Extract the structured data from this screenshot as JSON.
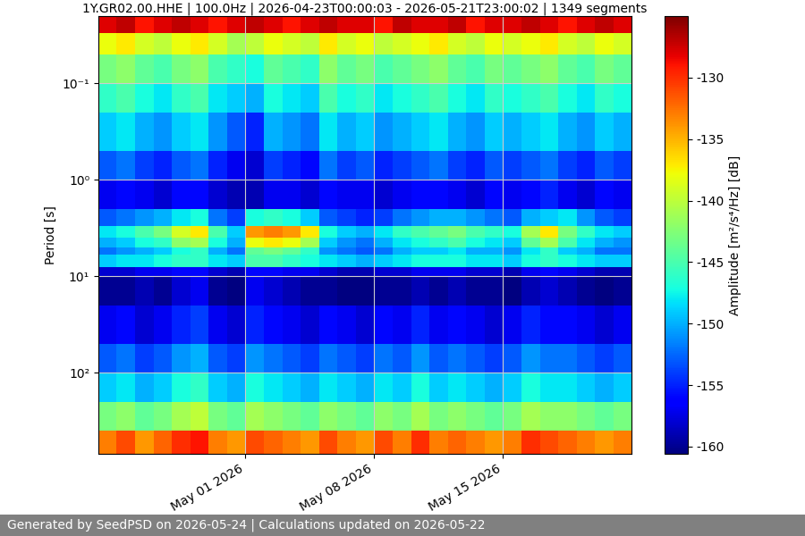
{
  "chart_data": {
    "type": "heatmap",
    "title": "1Y.GR02.00.HHE | 100.0Hz | 2026-04-23T00:00:03 - 2026-05-21T23:00:02 | 1349 segments",
    "y_label": "Period [s]",
    "colorbar_label": "Amplitude [m²/s⁴/Hz] [dB]",
    "footer": "Generated by SeedPSD on 2026-05-24 | Calculations updated on 2026-05-22",
    "color": "jet",
    "log": "y",
    "grid": true,
    "x": [
      "2026-04-23",
      "2026-04-24",
      "2026-04-25",
      "2026-04-26",
      "2026-04-27",
      "2026-04-28",
      "2026-04-29",
      "2026-04-30",
      "2026-05-01",
      "2026-05-02",
      "2026-05-03",
      "2026-05-04",
      "2026-05-05",
      "2026-05-06",
      "2026-05-07",
      "2026-05-08",
      "2026-05-09",
      "2026-05-10",
      "2026-05-11",
      "2026-05-12",
      "2026-05-13",
      "2026-05-14",
      "2026-05-15",
      "2026-05-16",
      "2026-05-17",
      "2026-05-18",
      "2026-05-19",
      "2026-05-20",
      "2026-05-21",
      "2026-05-22"
    ],
    "y": [
      0.02,
      0.03,
      0.05,
      0.1,
      0.2,
      0.5,
      1,
      2,
      3,
      4,
      5,
      6,
      8,
      10,
      20,
      50,
      100,
      200,
      400,
      700
    ],
    "cells": [
      [
        -128,
        -127,
        -129,
        -128,
        -127,
        -128,
        -129,
        -128,
        -127,
        -128,
        -129,
        -128,
        -127,
        -128,
        -128,
        -129,
        -127,
        -128,
        -128,
        -127,
        -129,
        -128,
        -128,
        -127,
        -128,
        -129,
        -128,
        -127,
        -128
      ],
      [
        -138,
        -137,
        -139,
        -140,
        -138,
        -137,
        -139,
        -141,
        -140,
        -138,
        -139,
        -140,
        -137,
        -139,
        -138,
        -140,
        -139,
        -138,
        -137,
        -139,
        -140,
        -138,
        -139,
        -138,
        -137,
        -139,
        -140,
        -138,
        -139
      ],
      [
        -143,
        -142,
        -144,
        -145,
        -143,
        -142,
        -145,
        -146,
        -147,
        -144,
        -145,
        -146,
        -142,
        -144,
        -143,
        -145,
        -144,
        -143,
        -142,
        -144,
        -145,
        -143,
        -144,
        -143,
        -142,
        -144,
        -145,
        -143,
        -144
      ],
      [
        -146,
        -145,
        -147,
        -148,
        -146,
        -145,
        -148,
        -149,
        -150,
        -147,
        -148,
        -149,
        -145,
        -147,
        -146,
        -148,
        -147,
        -146,
        -145,
        -147,
        -148,
        -146,
        -147,
        -146,
        -145,
        -147,
        -148,
        -146,
        -147
      ],
      [
        -149,
        -148,
        -150,
        -151,
        -149,
        -148,
        -151,
        -153,
        -155,
        -150,
        -151,
        -152,
        -148,
        -150,
        -149,
        -151,
        -150,
        -149,
        -148,
        -150,
        -151,
        -149,
        -150,
        -149,
        -148,
        -150,
        -151,
        -149,
        -150
      ],
      [
        -153,
        -152,
        -154,
        -155,
        -153,
        -152,
        -155,
        -157,
        -158,
        -154,
        -155,
        -156,
        -152,
        -154,
        -153,
        -155,
        -154,
        -153,
        -152,
        -154,
        -155,
        -153,
        -154,
        -153,
        -152,
        -154,
        -155,
        -153,
        -154
      ],
      [
        -157,
        -156,
        -157,
        -158,
        -156,
        -156,
        -158,
        -159,
        -159,
        -157,
        -157,
        -158,
        -156,
        -157,
        -157,
        -158,
        -157,
        -156,
        -156,
        -157,
        -158,
        -156,
        -157,
        -156,
        -155,
        -157,
        -158,
        -156,
        -157
      ],
      [
        -153,
        -152,
        -151,
        -150,
        -148,
        -147,
        -152,
        -154,
        -147,
        -146,
        -147,
        -149,
        -153,
        -154,
        -155,
        -154,
        -152,
        -151,
        -150,
        -150,
        -151,
        -152,
        -153,
        -150,
        -149,
        -148,
        -151,
        -153,
        -154
      ],
      [
        -148,
        -147,
        -145,
        -143,
        -139,
        -137,
        -145,
        -149,
        -134,
        -133,
        -134,
        -137,
        -147,
        -149,
        -150,
        -148,
        -146,
        -145,
        -144,
        -143,
        -145,
        -146,
        -147,
        -141,
        -137,
        -143,
        -146,
        -148,
        -149
      ],
      [
        -150,
        -149,
        -147,
        -146,
        -142,
        -141,
        -147,
        -150,
        -138,
        -137,
        -138,
        -141,
        -149,
        -151,
        -152,
        -150,
        -148,
        -147,
        -146,
        -145,
        -147,
        -148,
        -149,
        -144,
        -141,
        -145,
        -148,
        -150,
        -151
      ],
      [
        -152,
        -151,
        -150,
        -149,
        -147,
        -146,
        -150,
        -152,
        -144,
        -143,
        -144,
        -146,
        -151,
        -152,
        -153,
        -152,
        -150,
        -149,
        -149,
        -148,
        -150,
        -150,
        -151,
        -148,
        -146,
        -149,
        -150,
        -152,
        -152
      ],
      [
        -149,
        -148,
        -148,
        -147,
        -146,
        -146,
        -148,
        -149,
        -145,
        -145,
        -146,
        -147,
        -148,
        -149,
        -150,
        -149,
        -148,
        -147,
        -147,
        -147,
        -148,
        -148,
        -149,
        -147,
        -146,
        -147,
        -148,
        -149,
        -149
      ],
      [
        -158,
        -158,
        -157,
        -157,
        -156,
        -156,
        -158,
        -159,
        -156,
        -156,
        -157,
        -157,
        -158,
        -159,
        -159,
        -158,
        -158,
        -157,
        -157,
        -157,
        -158,
        -158,
        -159,
        -157,
        -156,
        -157,
        -158,
        -159,
        -159
      ],
      [
        -160,
        -160,
        -159,
        -160,
        -158,
        -157,
        -160,
        -161,
        -157,
        -158,
        -159,
        -160,
        -160,
        -161,
        -161,
        -160,
        -160,
        -159,
        -160,
        -159,
        -160,
        -160,
        -161,
        -159,
        -158,
        -159,
        -160,
        -161,
        -160
      ],
      [
        -157,
        -156,
        -158,
        -157,
        -155,
        -154,
        -157,
        -158,
        -155,
        -156,
        -157,
        -158,
        -156,
        -157,
        -158,
        -156,
        -157,
        -155,
        -157,
        -156,
        -157,
        -158,
        -157,
        -155,
        -156,
        -156,
        -157,
        -158,
        -157
      ],
      [
        -153,
        -152,
        -154,
        -153,
        -151,
        -150,
        -153,
        -154,
        -151,
        -152,
        -153,
        -154,
        -152,
        -153,
        -154,
        -152,
        -153,
        -151,
        -153,
        -152,
        -153,
        -154,
        -153,
        -151,
        -152,
        -152,
        -153,
        -154,
        -153
      ],
      [
        -149,
        -148,
        -150,
        -149,
        -147,
        -146,
        -149,
        -150,
        -147,
        -148,
        -149,
        -150,
        -148,
        -149,
        -150,
        -148,
        -149,
        -147,
        -149,
        -148,
        -149,
        -150,
        -149,
        -147,
        -148,
        -148,
        -149,
        -150,
        -149
      ],
      [
        -143,
        -142,
        -144,
        -143,
        -141,
        -140,
        -143,
        -144,
        -141,
        -142,
        -143,
        -144,
        -142,
        -143,
        -144,
        -142,
        -143,
        -141,
        -143,
        -142,
        -143,
        -144,
        -143,
        -141,
        -142,
        -142,
        -143,
        -144,
        -143
      ],
      [
        -133,
        -131,
        -134,
        -132,
        -130,
        -129,
        -133,
        -134,
        -131,
        -132,
        -133,
        -134,
        -131,
        -133,
        -134,
        -131,
        -133,
        -130,
        -133,
        -132,
        -133,
        -134,
        -133,
        -130,
        -131,
        -132,
        -133,
        -134,
        -133
      ]
    ],
    "xlim": [
      "2026-04-23T00:00:03",
      "2026-05-21T23:00:02"
    ],
    "xticks": [
      {
        "value": "2026-05-01",
        "label": "May 01 2026"
      },
      {
        "value": "2026-05-08",
        "label": "May 08 2026"
      },
      {
        "value": "2026-05-15",
        "label": "May 15 2026"
      }
    ],
    "ylim": [
      700,
      0.02
    ],
    "yticks": [
      {
        "value": 0.1,
        "label": "10⁻¹"
      },
      {
        "value": 1,
        "label": "10⁰"
      },
      {
        "value": 10,
        "label": "10¹"
      },
      {
        "value": 100,
        "label": "10²"
      }
    ],
    "colorbar": {
      "range": [
        -160.6,
        -125
      ],
      "ticks": [
        -130,
        -135,
        -140,
        -145,
        -150,
        -155,
        -160
      ]
    }
  }
}
